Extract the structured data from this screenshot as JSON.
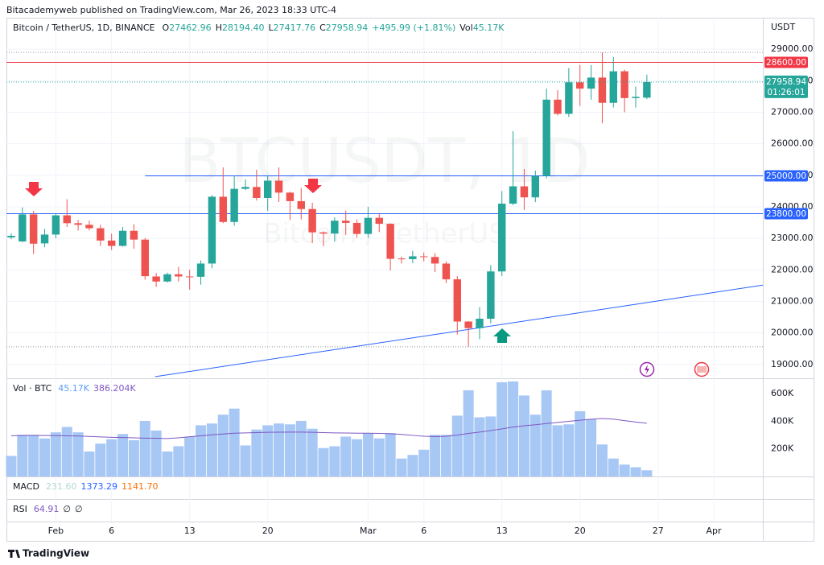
{
  "header": {
    "title": "Bitacademyweb published on TradingView.com, Mar 26, 2023 18:33 UTC-4"
  },
  "footer": {
    "brand": "TradingView"
  },
  "chart_data": [
    {
      "type": "candlestick",
      "symbol": "Bitcoin / TetherUS, 1D, BINANCE",
      "ohlc_legend": [
        {
          "key": "O",
          "value": "27462.96"
        },
        {
          "key": "H",
          "value": "28194.40"
        },
        {
          "key": "L",
          "value": "27417.76"
        },
        {
          "key": "C",
          "value": "27958.94"
        }
      ],
      "change": "+495.99 (+1.81%)",
      "vol_legend": {
        "key": "Vol",
        "value": "45.17K"
      },
      "watermark": "BTCUSDT, 1D",
      "watermark_sub": "Bitcoin / TetherUS",
      "currency": "USDT",
      "categories": [
        null,
        null,
        null,
        null,
        null,
        null,
        null,
        null,
        null,
        null,
        null,
        null,
        null,
        null,
        null,
        null,
        null,
        null,
        null,
        null,
        null,
        null,
        null,
        null,
        null,
        null,
        null,
        null,
        null,
        null,
        null,
        null,
        null,
        null,
        null,
        null,
        null,
        null,
        null,
        null,
        null,
        null,
        null,
        null,
        null,
        null,
        null,
        null,
        null,
        null,
        null,
        null,
        null,
        null,
        null,
        null,
        null,
        null
      ],
      "open": [
        23030,
        22900,
        23760,
        22840,
        23120,
        23730,
        23480,
        23430,
        23320,
        22930,
        22760,
        23240,
        22960,
        21790,
        21630,
        21860,
        21790,
        21780,
        22200,
        24320,
        23520,
        24570,
        24630,
        24280,
        24830,
        24450,
        24180,
        23930,
        23190,
        23150,
        23560,
        23490,
        23140,
        23650,
        23460,
        22360,
        22340,
        22430,
        22410,
        22200,
        21700,
        20360,
        20150,
        20450,
        21950,
        24100,
        24650,
        24300,
        24980,
        27400,
        26950,
        27950,
        27750,
        28100,
        27300,
        28300,
        27450,
        27462.96
      ],
      "high": [
        23160,
        23980,
        23870,
        23300,
        23800,
        24240,
        23580,
        23560,
        23430,
        23150,
        23360,
        23450,
        23010,
        21900,
        21910,
        22090,
        22000,
        22300,
        24380,
        25250,
        25000,
        24870,
        25180,
        25000,
        25250,
        24480,
        24600,
        24130,
        23220,
        23670,
        23880,
        23600,
        24000,
        23780,
        23480,
        22420,
        22600,
        22550,
        22530,
        22270,
        21800,
        20370,
        20820,
        22150,
        24500,
        26400,
        25200,
        25150,
        27750,
        27700,
        28400,
        28500,
        28500,
        28900,
        28750,
        28350,
        27820,
        28194.4
      ],
      "low": [
        22970,
        22880,
        22500,
        22720,
        23000,
        23360,
        23250,
        23250,
        22760,
        22630,
        22740,
        22670,
        21690,
        21460,
        21600,
        21630,
        21370,
        21530,
        22050,
        23480,
        23400,
        24530,
        24200,
        23870,
        24150,
        23580,
        23600,
        22850,
        22750,
        22900,
        23100,
        23020,
        23020,
        23200,
        21980,
        22200,
        22210,
        22270,
        21930,
        21580,
        19950,
        19560,
        19800,
        20300,
        21800,
        24050,
        23900,
        24150,
        24900,
        26900,
        26850,
        27200,
        27400,
        26650,
        27150,
        27000,
        27150,
        27417.76
      ],
      "close": [
        23080,
        23760,
        22830,
        23120,
        23730,
        23480,
        23430,
        23320,
        22930,
        22760,
        23240,
        22960,
        21800,
        21630,
        21860,
        21790,
        21780,
        22200,
        24320,
        23520,
        24570,
        24630,
        24280,
        24830,
        24450,
        24180,
        23930,
        23190,
        23150,
        23560,
        23490,
        23140,
        23650,
        23460,
        22350,
        22340,
        22430,
        22410,
        22200,
        21700,
        20360,
        20150,
        20450,
        21950,
        24100,
        24650,
        24300,
        24980,
        27400,
        26950,
        27950,
        27750,
        28100,
        27300,
        28300,
        27450,
        27490,
        27958.94
      ],
      "up_color": "#26a69a",
      "down_color": "#ef5350",
      "xlim": [
        -0.43,
        67.4
      ],
      "xticks": [
        {
          "value": 4,
          "label": "Feb"
        },
        {
          "value": 9,
          "label": "6"
        },
        {
          "value": 16,
          "label": "13"
        },
        {
          "value": 23,
          "label": "20"
        },
        {
          "value": 32,
          "label": "Mar"
        },
        {
          "value": 37,
          "label": "6"
        },
        {
          "value": 44,
          "label": "13"
        },
        {
          "value": 51,
          "label": "20"
        },
        {
          "value": 58,
          "label": "27"
        },
        {
          "value": 63,
          "label": "Apr"
        }
      ],
      "ylim": [
        18560,
        30000
      ],
      "yticks": [
        {
          "value": 19000,
          "label": "19000.00"
        },
        {
          "value": 20000,
          "label": "20000.00"
        },
        {
          "value": 21000,
          "label": "21000.00"
        },
        {
          "value": 22000,
          "label": "22000.00"
        },
        {
          "value": 23000,
          "label": "23000.00"
        },
        {
          "value": 24000,
          "label": "24000.00"
        },
        {
          "value": 25000,
          "label": "25000.00"
        },
        {
          "value": 26000,
          "label": "26000.00"
        },
        {
          "value": 27000,
          "label": "27000.00"
        },
        {
          "value": 28000,
          "label": "28000.00"
        },
        {
          "value": 29000,
          "label": "29000.00"
        }
      ],
      "grid": true,
      "price_lines": [
        {
          "value": 28600,
          "label": "28600.00",
          "color": "#f23645"
        },
        {
          "value": 25000,
          "label": "25000.00",
          "color": "#2962ff",
          "x_start": 12
        },
        {
          "value": 23800,
          "label": "23800.00",
          "color": "#2962ff"
        }
      ],
      "countdown": "01:26:01",
      "trendline": {
        "x": [
          12.9,
          67.4
        ],
        "y": [
          18611,
          21515
        ],
        "color": "#2962ff"
      }
    },
    {
      "type": "bar",
      "title": "Vol · BTC",
      "values": [
        149000,
        302000,
        302000,
        276000,
        320000,
        359000,
        320000,
        181000,
        238000,
        270000,
        308000,
        263000,
        403000,
        333000,
        181000,
        219000,
        289000,
        371000,
        384000,
        448000,
        492000,
        225000,
        340000,
        371000,
        384000,
        378000,
        403000,
        346000,
        206000,
        219000,
        289000,
        270000,
        314000,
        276000,
        314000,
        130000,
        156000,
        194000,
        302000,
        302000,
        441000,
        625000,
        429000,
        435000,
        683000,
        689000,
        587000,
        448000,
        625000,
        371000,
        378000,
        473000,
        416000,
        232000,
        130000,
        86000,
        67000,
        45170
      ],
      "color": "#a7c7f5",
      "ma": {
        "values": [
          295000,
          298000,
          298000,
          297000,
          296000,
          295000,
          293000,
          290000,
          287000,
          284000,
          282000,
          280000,
          278000,
          277000,
          275000,
          280000,
          288000,
          295000,
          302000,
          308000,
          314000,
          316000,
          318000,
          320000,
          321000,
          322000,
          322000,
          320000,
          318000,
          316000,
          315000,
          314000,
          314000,
          312000,
          310000,
          305000,
          298000,
          292000,
          289000,
          292000,
          300000,
          312000,
          322000,
          333000,
          345000,
          358000,
          368000,
          375000,
          384000,
          392000,
          400000,
          408000,
          415000,
          420000,
          416000,
          405000,
          395000,
          386204
        ],
        "color": "#7e57c2"
      },
      "legend_values": [
        "45.17K",
        "386.204K"
      ],
      "legend_colors": [
        "#5b9cf6",
        "#7e57c2"
      ],
      "ylim": [
        0,
        712000
      ],
      "yticks": [
        {
          "value": 200000,
          "label": "200K"
        },
        {
          "value": 400000,
          "label": "400K"
        },
        {
          "value": 600000,
          "label": "600K"
        }
      ]
    },
    {
      "type": "indicator",
      "title": "MACD",
      "legend_values": [
        "231.60",
        "1373.29",
        "1141.70"
      ],
      "legend_colors": [
        "#b2d8d4",
        "#2962ff",
        "#ff6d00"
      ]
    },
    {
      "type": "indicator",
      "title": "RSI",
      "legend_values": [
        "64.91",
        "∅",
        "∅"
      ],
      "legend_colors": [
        "#7e57c2",
        "#131722",
        "#131722"
      ]
    }
  ]
}
